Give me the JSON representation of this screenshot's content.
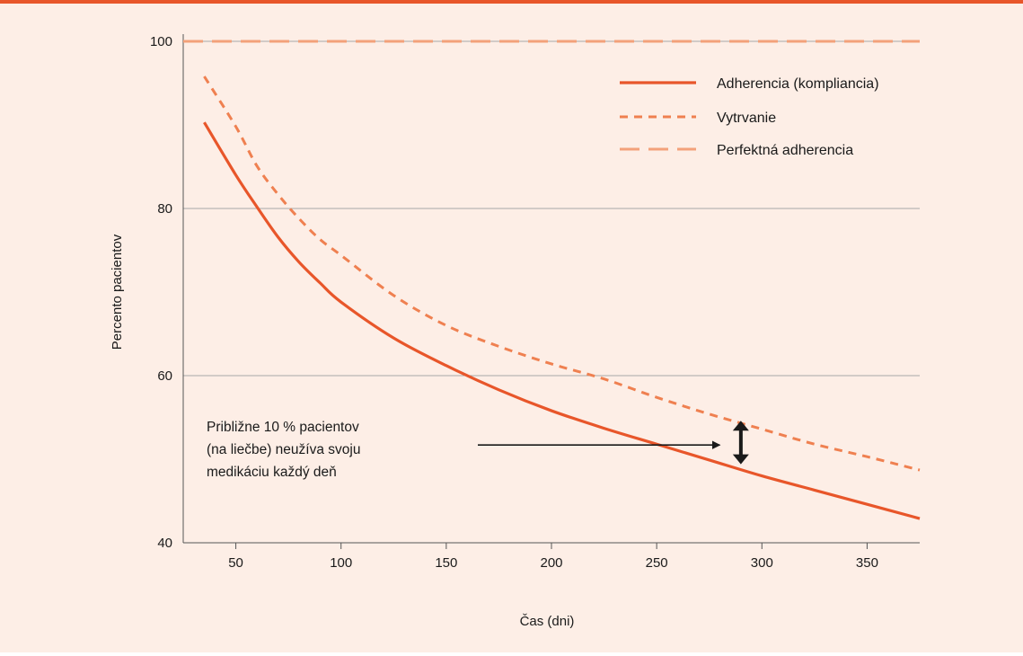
{
  "chart_data": {
    "type": "line",
    "title": "",
    "xlabel": "Čas (dni)",
    "ylabel": "Percento pacientov",
    "xlim": [
      25,
      375
    ],
    "ylim": [
      40,
      100
    ],
    "x_ticks": [
      "50",
      "100",
      "150",
      "200",
      "250",
      "300",
      "350"
    ],
    "y_ticks": [
      "40",
      "60",
      "80",
      "100"
    ],
    "grid": "horizontal",
    "legend_position": "top-right",
    "series": [
      {
        "name": "Adherencia (kompliancia)",
        "style": "solid",
        "color": "#e8562a",
        "x": [
          35,
          50,
          60,
          70,
          80,
          90,
          100,
          125,
          150,
          175,
          200,
          225,
          250,
          275,
          300,
          325,
          350,
          375
        ],
        "y": [
          90.3,
          84,
          80.2,
          76.6,
          73.6,
          71.1,
          68.8,
          64.5,
          61.2,
          58.3,
          55.8,
          53.7,
          51.8,
          49.9,
          48.0,
          46.3,
          44.6,
          42.9
        ]
      },
      {
        "name": "Vytrvanie",
        "style": "short-dash",
        "color": "#ef8050",
        "x": [
          35,
          50,
          60,
          70,
          80,
          90,
          100,
          125,
          150,
          175,
          200,
          225,
          250,
          275,
          300,
          325,
          350,
          375
        ],
        "y": [
          95.8,
          89.8,
          85.1,
          81.7,
          78.8,
          76.3,
          74.4,
          69.6,
          66.0,
          63.5,
          61.4,
          59.6,
          57.4,
          55.4,
          53.6,
          51.8,
          50.3,
          48.7
        ]
      },
      {
        "name": "Perfektná adherencia",
        "style": "long-dash",
        "color": "#f3a17a",
        "x": [
          25,
          375
        ],
        "y": [
          100,
          100
        ]
      }
    ],
    "annotation": {
      "lines": [
        "Približne 10 % pacientov",
        "(na liečbe) neužíva svoju",
        "medikáciu každý deň"
      ],
      "arrow_from": [
        165,
        51.7
      ],
      "arrow_to": [
        280,
        51.7
      ],
      "gap_x": 290,
      "gap_y": [
        49.4,
        54.6
      ]
    }
  }
}
